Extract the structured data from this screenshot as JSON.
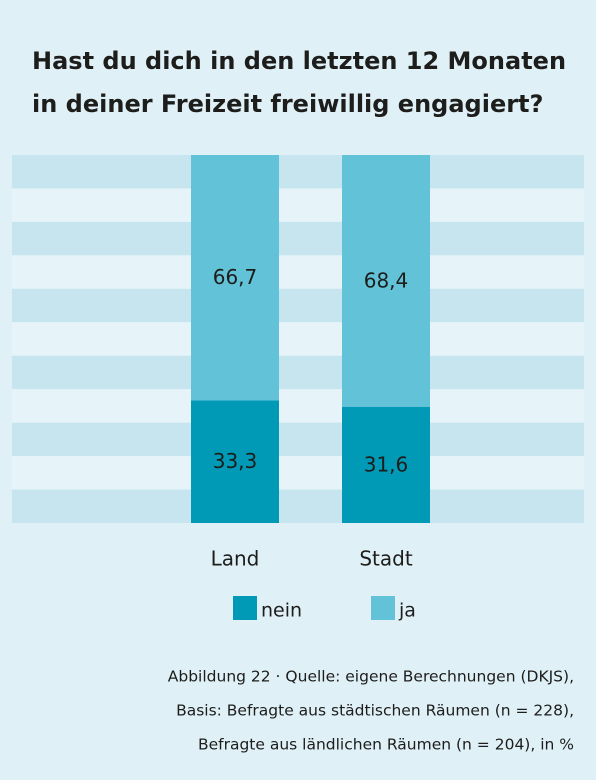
{
  "chart_data": {
    "type": "bar",
    "stacked": true,
    "title": "Hast du dich in den letzten 12 Monaten in deiner Freizeit freiwillig engagiert?",
    "categories": [
      "Land",
      "Stadt"
    ],
    "series": [
      {
        "name": "nein",
        "color": "#0099b6",
        "values": [
          33.3,
          31.6
        ],
        "value_labels": [
          "33,3",
          "31,6"
        ]
      },
      {
        "name": "ja",
        "color": "#62c2d8",
        "values": [
          66.7,
          68.4
        ],
        "value_labels": [
          "66,7",
          "68,4"
        ]
      }
    ],
    "ylim": [
      0,
      100
    ],
    "caption": [
      "Abbildung 22 · Quelle: eigene Berechnungen (DKJS),",
      "Basis: Befragte aus städtischen Räumen (n = 228),",
      "Befragte aus ländlichen Räumen (n = 204), in %"
    ]
  }
}
